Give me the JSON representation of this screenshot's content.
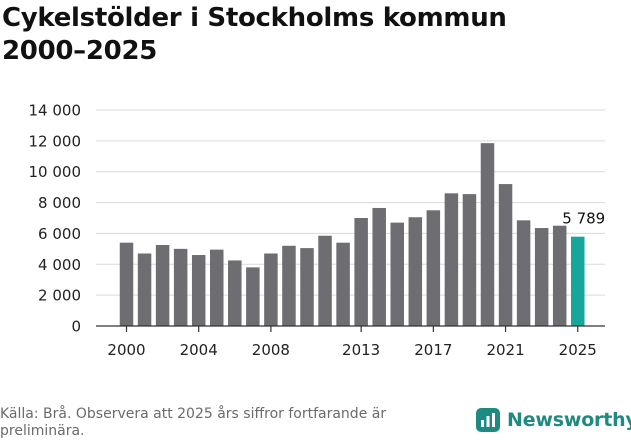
{
  "title": {
    "line1": "Cykelstölder i Stockholms kommun",
    "line2": "2000–2025"
  },
  "chart_data": {
    "type": "bar",
    "title": "Cykelstölder i Stockholms kommun 2000–2025",
    "xlabel": "",
    "ylabel": "",
    "ylim": [
      0,
      14000
    ],
    "grid": true,
    "y_ticks": [
      0,
      2000,
      4000,
      6000,
      8000,
      10000,
      12000,
      14000
    ],
    "y_tick_labels": [
      "0",
      "2 000",
      "4 000",
      "6 000",
      "8 000",
      "10 000",
      "12 000",
      "14 000"
    ],
    "x_tick_labels": [
      "2000",
      "2004",
      "2008",
      "2013",
      "2017",
      "2021",
      "2025"
    ],
    "categories": [
      2000,
      2001,
      2002,
      2003,
      2004,
      2005,
      2006,
      2007,
      2008,
      2009,
      2010,
      2011,
      2012,
      2013,
      2014,
      2015,
      2016,
      2017,
      2018,
      2019,
      2020,
      2021,
      2022,
      2023,
      2024,
      2025
    ],
    "values": [
      5400,
      4700,
      5250,
      5000,
      4600,
      4950,
      4250,
      3800,
      4700,
      5200,
      5050,
      5850,
      5400,
      7000,
      7650,
      6700,
      7050,
      7500,
      8600,
      8550,
      11850,
      9200,
      6850,
      6350,
      6500,
      5789
    ],
    "highlight": {
      "category": 2025,
      "label": "5 789"
    },
    "colors": {
      "bar": "#6e6d72",
      "highlight": "#17a69a",
      "grid": "#d9d9d9",
      "axis": "#333333"
    }
  },
  "footer": {
    "source": "Källa: Brå. Observera att 2025 års siffror fortfarande är preliminära.",
    "brand": "Newsworthy",
    "brand_icon": "newsworthy-logo-icon",
    "brand_color": "#1f8a82"
  }
}
